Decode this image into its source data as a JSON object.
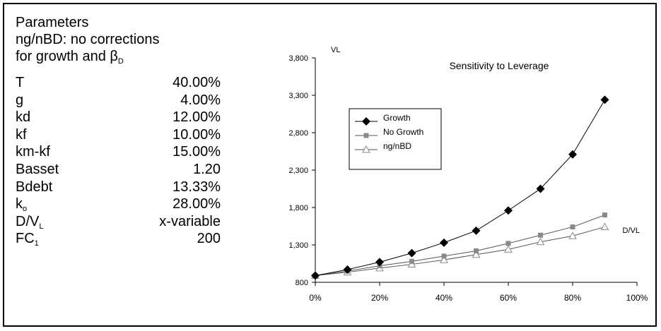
{
  "panel": {
    "title": "Parameters",
    "subtitle_line1": "ng/nBD: no corrections",
    "subtitle_line2": "for growth and β",
    "subtitle_sub": "D",
    "rows": [
      {
        "name": "T",
        "sub": "",
        "value": "40.00%"
      },
      {
        "name": "g",
        "sub": "",
        "value": "4.00%"
      },
      {
        "name": "kd",
        "sub": "",
        "value": "12.00%"
      },
      {
        "name": "kf",
        "sub": "",
        "value": "10.00%"
      },
      {
        "name": "km-kf",
        "sub": "",
        "value": "15.00%"
      },
      {
        "name": "Basset",
        "sub": "",
        "value": "1.20"
      },
      {
        "name": "Bdebt",
        "sub": "",
        "value": "13.33%"
      },
      {
        "name": "k",
        "sub": "o",
        "value": "28.00%"
      },
      {
        "name": "D/V",
        "sub": "L",
        "value": "x-variable"
      },
      {
        "name": "FC",
        "sub": "1",
        "value": "200"
      }
    ]
  },
  "chart_data": {
    "type": "line",
    "title": "Sensitivity to Leverage",
    "ylabel": "VL",
    "xlabel": "D/VL",
    "ylim": [
      800,
      3800
    ],
    "xlim": [
      0,
      100
    ],
    "yticks": [
      800,
      1300,
      1800,
      2300,
      2800,
      3300,
      3800
    ],
    "ytick_labels": [
      "800",
      "1,300",
      "1,800",
      "2,300",
      "2,800",
      "3,300",
      "3,800"
    ],
    "xticks": [
      0,
      20,
      40,
      60,
      80,
      100
    ],
    "xtick_labels": [
      "0%",
      "20%",
      "40%",
      "60%",
      "80%",
      "100%"
    ],
    "x": [
      0,
      10,
      20,
      30,
      40,
      50,
      60,
      70,
      80,
      90
    ],
    "series": [
      {
        "name": "Growth",
        "marker": "diamond",
        "color": "#000000",
        "values": [
          890,
          970,
          1070,
          1190,
          1330,
          1490,
          1760,
          2050,
          2510,
          3240
        ]
      },
      {
        "name": "No Growth",
        "marker": "square",
        "color": "#8a8a8a",
        "values": [
          890,
          950,
          1020,
          1080,
          1150,
          1220,
          1320,
          1430,
          1540,
          1700
        ]
      },
      {
        "name": "ng/nBD",
        "marker": "triangle",
        "color": "#8a8a8a",
        "values": [
          890,
          935,
          990,
          1040,
          1100,
          1170,
          1240,
          1340,
          1420,
          1540
        ]
      }
    ],
    "grid": false,
    "legend_position": "left"
  }
}
